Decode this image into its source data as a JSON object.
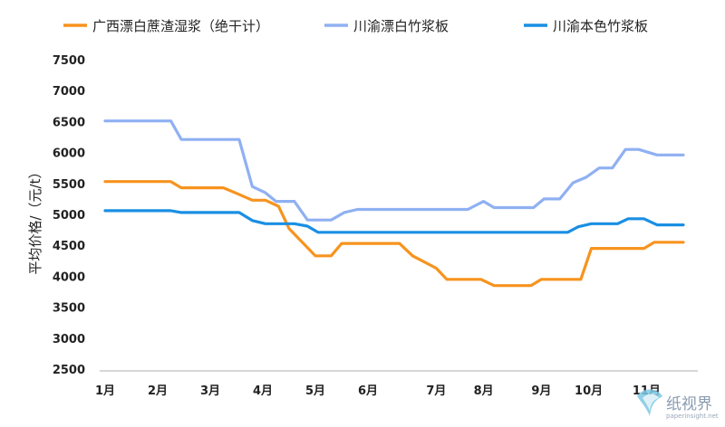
{
  "chart_data": {
    "type": "line",
    "ylabel": "平均价格/（元/t）",
    "xlabel": "",
    "ylim": [
      2500,
      7500
    ],
    "yticks": [
      2500,
      3000,
      3500,
      4000,
      4500,
      5000,
      5500,
      6000,
      6500,
      7000,
      7500
    ],
    "xlim": [
      1,
      11.7
    ],
    "month_ticks": [
      {
        "label": "1月",
        "x": 1
      },
      {
        "label": "2月",
        "x": 2
      },
      {
        "label": "3月",
        "x": 3
      },
      {
        "label": "4月",
        "x": 4
      },
      {
        "label": "5月",
        "x": 5
      },
      {
        "label": "6月",
        "x": 6
      },
      {
        "label": "7月",
        "x": 7.3
      },
      {
        "label": "8月",
        "x": 8.2
      },
      {
        "label": "9月",
        "x": 9.3
      },
      {
        "label": "10月",
        "x": 10.2
      },
      {
        "label": "11月",
        "x": 11.3
      }
    ],
    "grid": false,
    "legend_position": "top",
    "series": [
      {
        "name": "广西漂白蔗渣湿浆（绝干计）",
        "color": "#f7931e",
        "points": [
          [
            1,
            5530
          ],
          [
            2.25,
            5530
          ],
          [
            2.45,
            5430
          ],
          [
            3.25,
            5430
          ],
          [
            3.5,
            5340
          ],
          [
            3.8,
            5230
          ],
          [
            4.05,
            5230
          ],
          [
            4.3,
            5130
          ],
          [
            4.5,
            4770
          ],
          [
            5,
            4330
          ],
          [
            5.3,
            4330
          ],
          [
            5.5,
            4530
          ],
          [
            6.6,
            4530
          ],
          [
            6.85,
            4330
          ],
          [
            7.3,
            4130
          ],
          [
            7.5,
            3950
          ],
          [
            8.15,
            3950
          ],
          [
            8.4,
            3850
          ],
          [
            9.1,
            3850
          ],
          [
            9.3,
            3950
          ],
          [
            10.05,
            3950
          ],
          [
            10.25,
            4450
          ],
          [
            11.25,
            4450
          ],
          [
            11.45,
            4550
          ],
          [
            12.0,
            4550
          ]
        ]
      },
      {
        "name": "川渝漂白竹浆板",
        "color": "#8fb0f2",
        "points": [
          [
            1,
            6510
          ],
          [
            2.25,
            6510
          ],
          [
            2.45,
            6210
          ],
          [
            3.55,
            6210
          ],
          [
            3.8,
            5450
          ],
          [
            4.05,
            5350
          ],
          [
            4.25,
            5210
          ],
          [
            4.6,
            5210
          ],
          [
            4.85,
            4910
          ],
          [
            5.3,
            4910
          ],
          [
            5.55,
            5030
          ],
          [
            5.8,
            5080
          ],
          [
            7.9,
            5080
          ],
          [
            8.2,
            5210
          ],
          [
            8.4,
            5110
          ],
          [
            9.15,
            5110
          ],
          [
            9.35,
            5250
          ],
          [
            9.65,
            5250
          ],
          [
            9.9,
            5510
          ],
          [
            10.15,
            5600
          ],
          [
            10.4,
            5750
          ],
          [
            10.65,
            5750
          ],
          [
            10.9,
            6050
          ],
          [
            11.15,
            6050
          ],
          [
            11.5,
            5960
          ],
          [
            12.0,
            5960
          ]
        ]
      },
      {
        "name": "川渝本色竹浆板",
        "color": "#1a8fe3",
        "points": [
          [
            1,
            5060
          ],
          [
            2.25,
            5060
          ],
          [
            2.45,
            5030
          ],
          [
            3.55,
            5030
          ],
          [
            3.8,
            4900
          ],
          [
            4.05,
            4850
          ],
          [
            4.6,
            4850
          ],
          [
            4.85,
            4810
          ],
          [
            5.05,
            4710
          ],
          [
            9.8,
            4710
          ],
          [
            10.0,
            4800
          ],
          [
            10.25,
            4850
          ],
          [
            10.75,
            4850
          ],
          [
            10.95,
            4930
          ],
          [
            11.25,
            4930
          ],
          [
            11.5,
            4830
          ],
          [
            12.0,
            4830
          ]
        ]
      }
    ]
  },
  "watermark": {
    "text": "纸视界",
    "url": "paperinsight.net"
  }
}
